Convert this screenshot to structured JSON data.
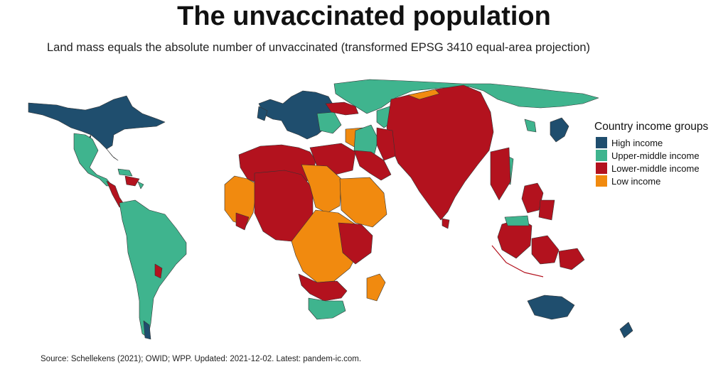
{
  "title": "The unvaccinated population",
  "subtitle": "Land mass equals the absolute number of unvaccinated (transformed EPSG 3410 equal-area projection)",
  "caption": "Source: Schellekens (2021); OWID; WPP. Updated: 2021-12-02. Latest: pandem-ic.com.",
  "legend": {
    "title": "Country income groups",
    "items": [
      {
        "label": "High income",
        "color": "#1f4e6e"
      },
      {
        "label": "Upper-middle income",
        "color": "#3fb48e"
      },
      {
        "label": "Lower-middle income",
        "color": "#b3121e"
      },
      {
        "label": "Low income",
        "color": "#f18a0f"
      }
    ]
  },
  "colors": {
    "high": "#1f4e6e",
    "upper_middle": "#3fb48e",
    "lower_middle": "#b3121e",
    "low": "#f18a0f",
    "border": "#333333"
  }
}
